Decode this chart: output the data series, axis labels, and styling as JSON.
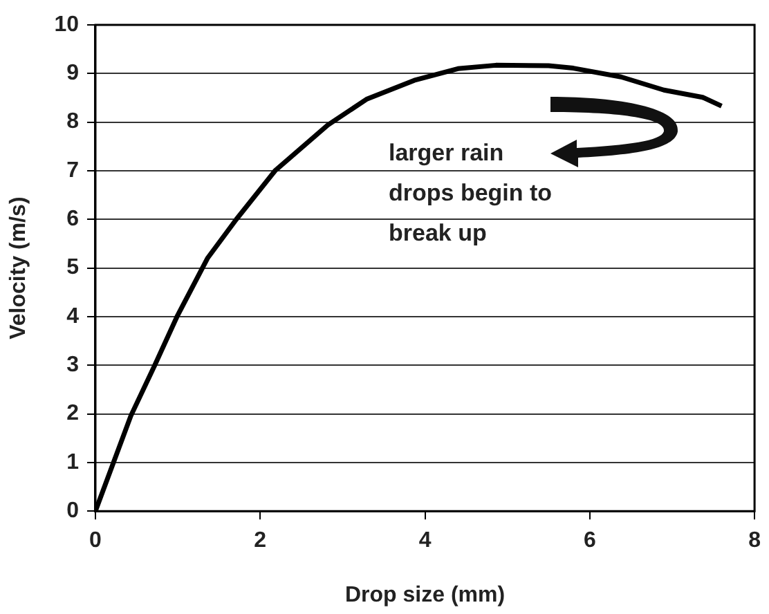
{
  "chart_data": {
    "type": "line",
    "xlabel": "Drop size (mm)",
    "ylabel": "Velocity (m/s)",
    "x": [
      0,
      0.43,
      0.72,
      0.99,
      1.36,
      1.71,
      2.18,
      2.82,
      3.29,
      3.87,
      4.4,
      4.86,
      5.5,
      5.8,
      6.38,
      6.9,
      7.37,
      7.6
    ],
    "values": [
      0,
      1.96,
      3.0,
      4.0,
      5.2,
      6.0,
      7.0,
      7.94,
      8.47,
      8.86,
      9.1,
      9.17,
      9.16,
      9.11,
      8.93,
      8.66,
      8.51,
      8.33
    ],
    "color": "#000000",
    "xlim": [
      0,
      8
    ],
    "xticks": [
      0,
      2,
      4,
      6,
      8
    ],
    "ylim": [
      0,
      10
    ],
    "yticks": [
      0,
      1,
      2,
      3,
      4,
      5,
      6,
      7,
      8,
      9,
      10
    ],
    "grid": "y",
    "legend": false,
    "marker": "none",
    "line_style": "solid",
    "annotations": [
      "larger rain drops begin to break up"
    ]
  }
}
